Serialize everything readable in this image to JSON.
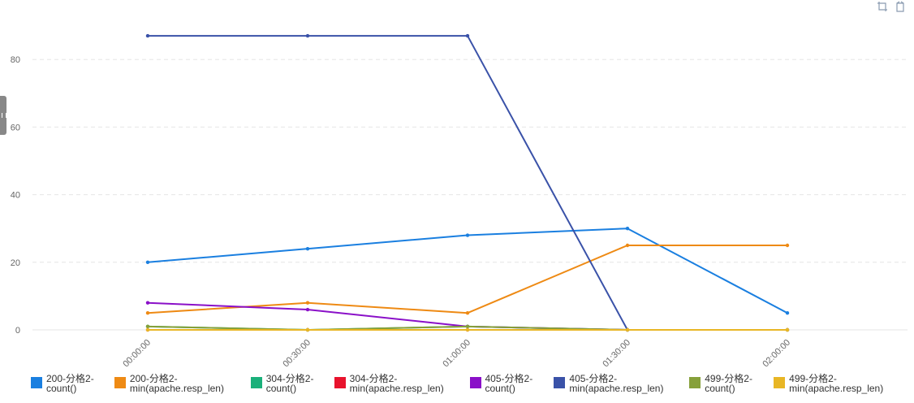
{
  "chart_data": {
    "type": "line",
    "title": "",
    "xlabel": "",
    "ylabel": "",
    "x": [
      "00:00:00",
      "00:30:00",
      "01:00:00",
      "01:30:00",
      "02:00:00"
    ],
    "yticks": [
      0,
      20,
      40,
      60,
      80
    ],
    "ylim": [
      0,
      90
    ],
    "grid": "horizontal dashed",
    "legend_position": "bottom",
    "series": [
      {
        "name": "200-分格2-\ncount()",
        "color": "#1a7fe0",
        "values": [
          20,
          24,
          28,
          30,
          5
        ]
      },
      {
        "name": "200-分格2-\nmin(apache.resp_len)",
        "color": "#ee8a14",
        "values": [
          5,
          8,
          5,
          25,
          25
        ]
      },
      {
        "name": "304-分格2-\ncount()",
        "color": "#1ab07a",
        "values": [
          1,
          0,
          1,
          0,
          0
        ]
      },
      {
        "name": "304-分格2-\nmin(apache.resp_len)",
        "color": "#e8132d",
        "values": [
          0,
          0,
          0,
          0,
          0
        ]
      },
      {
        "name": "405-分格2-\ncount()",
        "color": "#8a10c8",
        "values": [
          8,
          6,
          1,
          0,
          null
        ]
      },
      {
        "name": "405-分格2-\nmin(apache.resp_len)",
        "color": "#3a52a8",
        "values": [
          87,
          87,
          87,
          0,
          null
        ]
      },
      {
        "name": "499-分格2-\ncount()",
        "color": "#86a03a",
        "values": [
          1,
          0,
          1,
          0,
          0
        ]
      },
      {
        "name": "499-分格2-\nmin(apache.resp_len)",
        "color": "#e8b625",
        "values": [
          0,
          0,
          0,
          0,
          0
        ]
      }
    ]
  },
  "toolbox": {
    "icons": [
      "zoom-icon",
      "zoom-reset-icon"
    ]
  }
}
